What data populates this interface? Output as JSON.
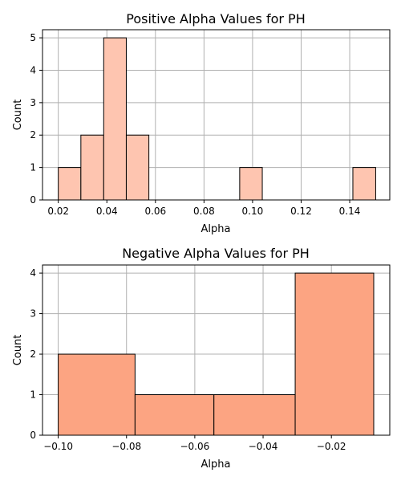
{
  "chart_data": [
    {
      "type": "bar",
      "title": "Positive Alpha Values for PH",
      "xlabel": "Alpha",
      "ylabel": "Count",
      "color": "#fec5b0",
      "xlim": [
        0.0135,
        0.1565
      ],
      "ylim": [
        0,
        5.25
      ],
      "xticks": [
        0.02,
        0.04,
        0.06,
        0.08,
        0.1,
        0.12,
        0.14
      ],
      "xtick_labels": [
        "0.02",
        "0.04",
        "0.06",
        "0.08",
        "0.10",
        "0.12",
        "0.14"
      ],
      "yticks": [
        0,
        1,
        2,
        3,
        4,
        5
      ],
      "ytick_labels": [
        "0",
        "1",
        "2",
        "3",
        "4",
        "5"
      ],
      "grid": true,
      "bins": [
        {
          "x0": 0.02,
          "x1": 0.0293,
          "value": 1
        },
        {
          "x0": 0.0293,
          "x1": 0.0387,
          "value": 2
        },
        {
          "x0": 0.0387,
          "x1": 0.048,
          "value": 5
        },
        {
          "x0": 0.048,
          "x1": 0.0573,
          "value": 2
        },
        {
          "x0": 0.0573,
          "x1": 0.0667,
          "value": 0
        },
        {
          "x0": 0.0667,
          "x1": 0.076,
          "value": 0
        },
        {
          "x0": 0.076,
          "x1": 0.0853,
          "value": 0
        },
        {
          "x0": 0.0853,
          "x1": 0.0947,
          "value": 0
        },
        {
          "x0": 0.0947,
          "x1": 0.104,
          "value": 1
        },
        {
          "x0": 0.104,
          "x1": 0.1133,
          "value": 0
        },
        {
          "x0": 0.1133,
          "x1": 0.1227,
          "value": 0
        },
        {
          "x0": 0.1227,
          "x1": 0.132,
          "value": 0
        },
        {
          "x0": 0.132,
          "x1": 0.1413,
          "value": 0
        },
        {
          "x0": 0.1413,
          "x1": 0.1507,
          "value": 1
        }
      ]
    },
    {
      "type": "bar",
      "title": "Negative Alpha Values for PH",
      "xlabel": "Alpha",
      "ylabel": "Count",
      "color": "#fca482",
      "xlim": [
        -0.1046,
        -0.0029
      ],
      "ylim": [
        0,
        4.2
      ],
      "xticks": [
        -0.1,
        -0.08,
        -0.06,
        -0.04,
        -0.02
      ],
      "xtick_labels": [
        "−0.10",
        "−0.08",
        "−0.06",
        "−0.04",
        "−0.02"
      ],
      "yticks": [
        0,
        1,
        2,
        3,
        4
      ],
      "ytick_labels": [
        "0",
        "1",
        "2",
        "3",
        "4"
      ],
      "grid": true,
      "bins": [
        {
          "x0": -0.1,
          "x1": -0.0775,
          "value": 2
        },
        {
          "x0": -0.0775,
          "x1": -0.0544,
          "value": 1
        },
        {
          "x0": -0.0544,
          "x1": -0.0306,
          "value": 1
        },
        {
          "x0": -0.0306,
          "x1": -0.0076,
          "value": 4
        }
      ]
    }
  ]
}
